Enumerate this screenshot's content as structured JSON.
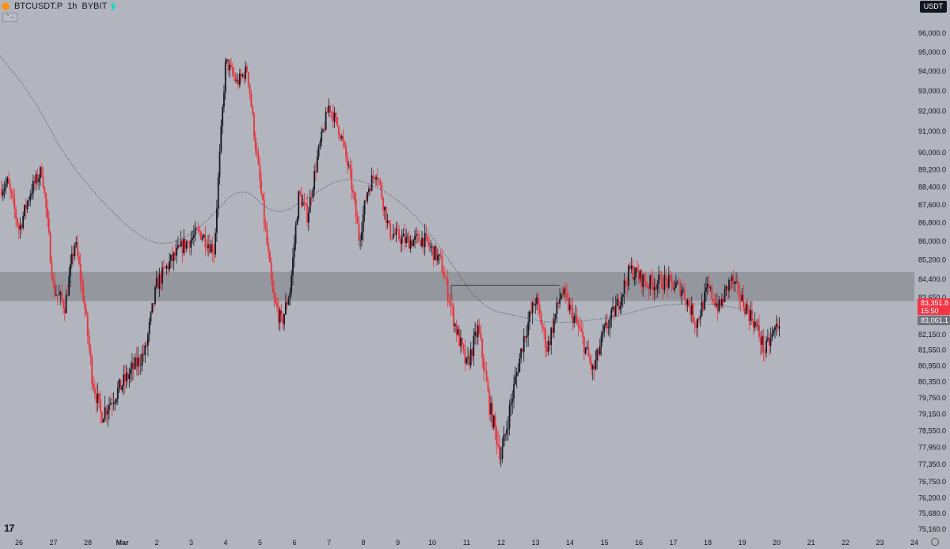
{
  "header": {
    "symbol": "BTCUSDT.P",
    "interval": "1h",
    "exchange": "BYBIT"
  },
  "currency_badge": "USDT",
  "collapse_glyph": "⌃⌄",
  "logo_text": "17",
  "colors": {
    "background": "#b2b5be",
    "bull": "#131722",
    "bear": "#e8313a",
    "zone": "#8f9299",
    "ma": "#4a4e58",
    "price_badge": "#f23645",
    "ma_badge": "#6f737d"
  },
  "chart_data": {
    "type": "candlestick",
    "yticks": [
      "96,000.0",
      "95,000.0",
      "94,000.0",
      "93,000.0",
      "92,000.0",
      "91,000.0",
      "90,000.0",
      "89,200.0",
      "88,400.0",
      "87,600.0",
      "86,800.0",
      "86,000.0",
      "85,200.0",
      "84,400.0",
      "83,650.0",
      "82,150.0",
      "81,550.0",
      "80,950.0",
      "80,350.0",
      "79,750.0",
      "79,150.0",
      "78,550.0",
      "77,950.0",
      "77,350.0",
      "76,750.0",
      "76,200.0",
      "75,680.0",
      "75,160.0"
    ],
    "xticks": [
      "26",
      "27",
      "28",
      "Mar",
      "2",
      "3",
      "4",
      "5",
      "6",
      "7",
      "8",
      "9",
      "10",
      "11",
      "12",
      "13",
      "14",
      "15",
      "16",
      "17",
      "18",
      "19",
      "20",
      "21",
      "22",
      "23",
      "24"
    ],
    "price_badge": {
      "value": "83,351.8",
      "countdown": "15:50"
    },
    "ma_badge": "83,061.1",
    "zone": {
      "top": 84700,
      "bottom": 83500
    },
    "range_box": {
      "x_start": "10",
      "x_end": "13",
      "level": 84150
    },
    "moving_average": {
      "points": [
        [
          "2/26",
          94800
        ],
        [
          "2/27",
          92600
        ],
        [
          "2/28",
          89400
        ],
        [
          "3/1",
          86100
        ],
        [
          "3/2",
          85800
        ],
        [
          "3/3",
          86800
        ],
        [
          "3/4",
          88600
        ],
        [
          "3/5",
          87000
        ],
        [
          "3/6",
          88000
        ],
        [
          "3/7",
          88900
        ],
        [
          "3/8",
          88400
        ],
        [
          "3/9",
          87300
        ],
        [
          "3/10",
          85300
        ],
        [
          "3/11",
          83200
        ],
        [
          "3/12",
          82900
        ],
        [
          "3/13",
          82600
        ],
        [
          "3/14",
          82700
        ],
        [
          "3/15",
          82900
        ],
        [
          "3/16",
          83300
        ],
        [
          "3/17",
          83400
        ],
        [
          "3/18",
          83350
        ],
        [
          "3/19",
          83000
        ]
      ]
    },
    "price_path": [
      [
        "2/26",
        88600
      ],
      [
        "2/26",
        86500
      ],
      [
        "2/26",
        88200
      ],
      [
        "2/27",
        89200
      ],
      [
        "2/27",
        84000
      ],
      [
        "2/27",
        83300
      ],
      [
        "2/28",
        86000
      ],
      [
        "2/28",
        83600
      ],
      [
        "2/28",
        80500
      ],
      [
        "2/28",
        79100
      ],
      [
        "3/1",
        81500
      ],
      [
        "3/1",
        84200
      ],
      [
        "3/1",
        85000
      ],
      [
        "3/2",
        85800
      ],
      [
        "3/2",
        86400
      ],
      [
        "3/3",
        85600
      ],
      [
        "3/3",
        94500
      ],
      [
        "3/3",
        93400
      ],
      [
        "3/4",
        94100
      ],
      [
        "3/4",
        90200
      ],
      [
        "3/4",
        86800
      ],
      [
        "3/4",
        83600
      ],
      [
        "3/5",
        82600
      ],
      [
        "3/5",
        84000
      ],
      [
        "3/5",
        88100
      ],
      [
        "3/5",
        87100
      ],
      [
        "3/6",
        89800
      ],
      [
        "3/6",
        92300
      ],
      [
        "3/6",
        90900
      ],
      [
        "3/7",
        88800
      ],
      [
        "3/7",
        86100
      ],
      [
        "3/7",
        88300
      ],
      [
        "3/7",
        89200
      ],
      [
        "3/8",
        86400
      ],
      [
        "3/8",
        86000
      ],
      [
        "3/9",
        86100
      ],
      [
        "3/9",
        85100
      ],
      [
        "3/10",
        82500
      ],
      [
        "3/10",
        80900
      ],
      [
        "3/10",
        82400
      ],
      [
        "3/11",
        79400
      ],
      [
        "3/11",
        77600
      ],
      [
        "3/11",
        79900
      ],
      [
        "3/12",
        82100
      ],
      [
        "3/12",
        83600
      ],
      [
        "3/12",
        81600
      ],
      [
        "3/13",
        83900
      ],
      [
        "3/13",
        82400
      ],
      [
        "3/14",
        80700
      ],
      [
        "3/14",
        82300
      ],
      [
        "3/14",
        83200
      ],
      [
        "3/15",
        84800
      ],
      [
        "3/15",
        84200
      ],
      [
        "3/16",
        84300
      ],
      [
        "3/16",
        84000
      ],
      [
        "3/17",
        82600
      ],
      [
        "3/17",
        84000
      ],
      [
        "3/17",
        83200
      ],
      [
        "3/18",
        84400
      ],
      [
        "3/18",
        83500
      ],
      [
        "3/18",
        82700
      ],
      [
        "3/19",
        81500
      ],
      [
        "3/19",
        82500
      ],
      [
        "3/19",
        83350
      ]
    ]
  }
}
